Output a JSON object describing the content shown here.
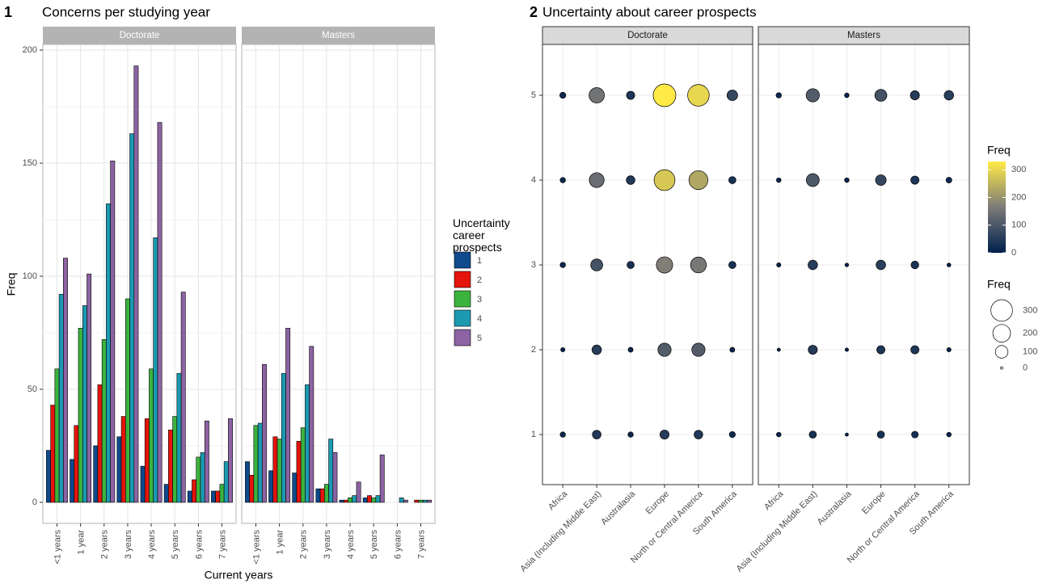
{
  "chart_data": [
    {
      "type": "bar",
      "panel_label": "1",
      "title": "Concerns per studying year",
      "x_label": "Current years",
      "y_label": "Freq",
      "legend_title": "Uncertainty career prospects",
      "categories": [
        "<1 years",
        "1 year",
        "2 years",
        "3 years",
        "4 years",
        "5 years",
        "6 years",
        "7 years"
      ],
      "legend_items": [
        {
          "name": "1",
          "color": "#0e4a8c"
        },
        {
          "name": "2",
          "color": "#e5140c"
        },
        {
          "name": "3",
          "color": "#3bb33d"
        },
        {
          "name": "4",
          "color": "#1b9ab1"
        },
        {
          "name": "5",
          "color": "#8d63a2"
        }
      ],
      "ylim": [
        -9.3,
        202.5
      ],
      "yticks": [
        0,
        50,
        100,
        150,
        200
      ],
      "grid": true,
      "facets": [
        {
          "label": "Doctorate",
          "series": [
            {
              "values": [
                23,
                19,
                25,
                29,
                16,
                8,
                5,
                5
              ]
            },
            {
              "values": [
                43,
                34,
                52,
                38,
                37,
                32,
                10,
                5
              ]
            },
            {
              "values": [
                59,
                77,
                72,
                90,
                59,
                38,
                20,
                8
              ]
            },
            {
              "values": [
                92,
                87,
                132,
                163,
                117,
                57,
                22,
                18
              ]
            },
            {
              "values": [
                108,
                101,
                151,
                193,
                168,
                93,
                36,
                37
              ]
            }
          ]
        },
        {
          "label": "Masters",
          "series": [
            {
              "values": [
                18,
                14,
                13,
                6,
                1,
                2,
                0,
                0
              ]
            },
            {
              "values": [
                12,
                29,
                27,
                6,
                1,
                3,
                0,
                1
              ]
            },
            {
              "values": [
                34,
                28,
                33,
                8,
                2,
                2,
                0,
                1
              ]
            },
            {
              "values": [
                35,
                57,
                52,
                28,
                3,
                3,
                2,
                1
              ]
            },
            {
              "values": [
                61,
                77,
                69,
                22,
                9,
                21,
                1,
                1
              ]
            }
          ]
        }
      ]
    },
    {
      "type": "bubble",
      "panel_label": "2",
      "title": "Uncertainty about career prospects",
      "categories": [
        "Africa",
        "Asia (Including Middle East)",
        "Australasia",
        "Europe",
        "North or Central America",
        "South America"
      ],
      "ylim": [
        0.41,
        5.6
      ],
      "yticks": [
        1,
        2,
        3,
        4,
        5
      ],
      "grid": true,
      "color_scale": {
        "title": "Freq",
        "lim": [
          0,
          330
        ],
        "ticks": [
          0,
          100,
          200,
          300
        ],
        "colors": [
          "#00204d",
          "#7c7b78",
          "#ffea46"
        ]
      },
      "size_scale": {
        "title": "Freq",
        "breaks": [
          0,
          100,
          200,
          300
        ]
      },
      "facets": [
        {
          "label": "Doctorate",
          "values": [
            [
              15,
              45,
              15,
              50,
              45,
              20
            ],
            [
              8,
              55,
              12,
              110,
              110,
              12
            ],
            [
              15,
              90,
              30,
              170,
              160,
              30
            ],
            [
              15,
              140,
              45,
              280,
              230,
              30
            ],
            [
              20,
              150,
              40,
              330,
              300,
              70
            ]
          ]
        },
        {
          "label": "Masters",
          "values": [
            [
              10,
              30,
              3,
              30,
              25,
              10
            ],
            [
              3,
              50,
              4,
              40,
              40,
              8
            ],
            [
              8,
              55,
              5,
              55,
              35,
              6
            ],
            [
              10,
              105,
              10,
              70,
              40,
              18
            ],
            [
              15,
              110,
              10,
              90,
              50,
              55
            ]
          ]
        }
      ]
    }
  ]
}
